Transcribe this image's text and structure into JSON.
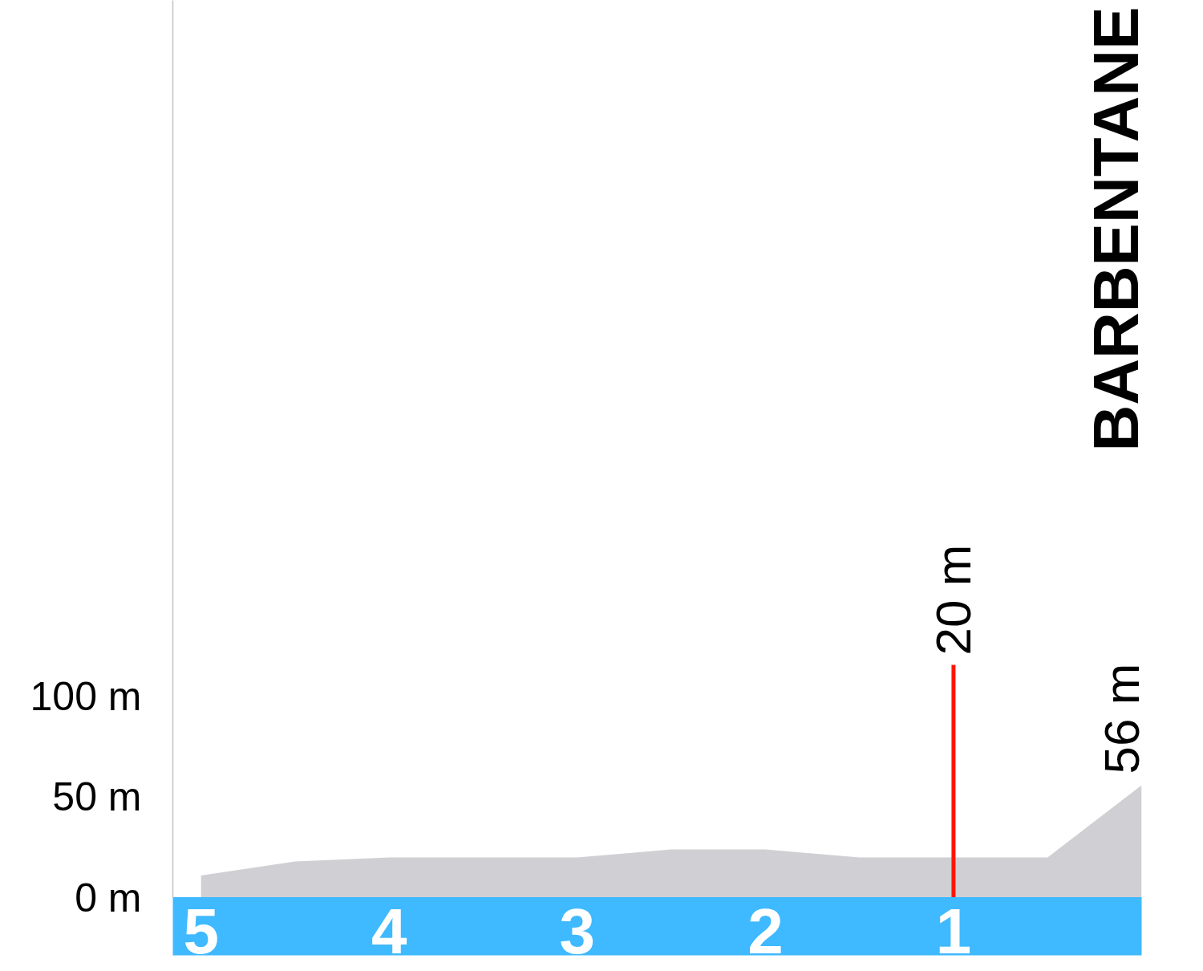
{
  "chart_data": {
    "type": "area",
    "title": "BARBENTANE",
    "x": [
      5,
      4.5,
      4,
      3,
      2.5,
      2,
      1.5,
      0.5,
      0
    ],
    "values": [
      11,
      18,
      20,
      20,
      24,
      24,
      20,
      20,
      56
    ],
    "color": "#d0cfd3",
    "xlim": [
      5.15,
      0
    ],
    "xticks": [
      5,
      4,
      3,
      2,
      1
    ],
    "ylim": [
      0,
      447
    ],
    "yticks": [
      {
        "value": 0,
        "label": "0 m"
      },
      {
        "value": 50,
        "label": "50 m"
      },
      {
        "value": 100,
        "label": "100 m"
      }
    ],
    "grid": false,
    "ref_lines": [
      {
        "axis": "x",
        "value": 1,
        "label": "20 m",
        "color": "#ff1500"
      }
    ],
    "annotations": [
      {
        "text": "56 m",
        "x": 0,
        "y": 56
      }
    ]
  }
}
